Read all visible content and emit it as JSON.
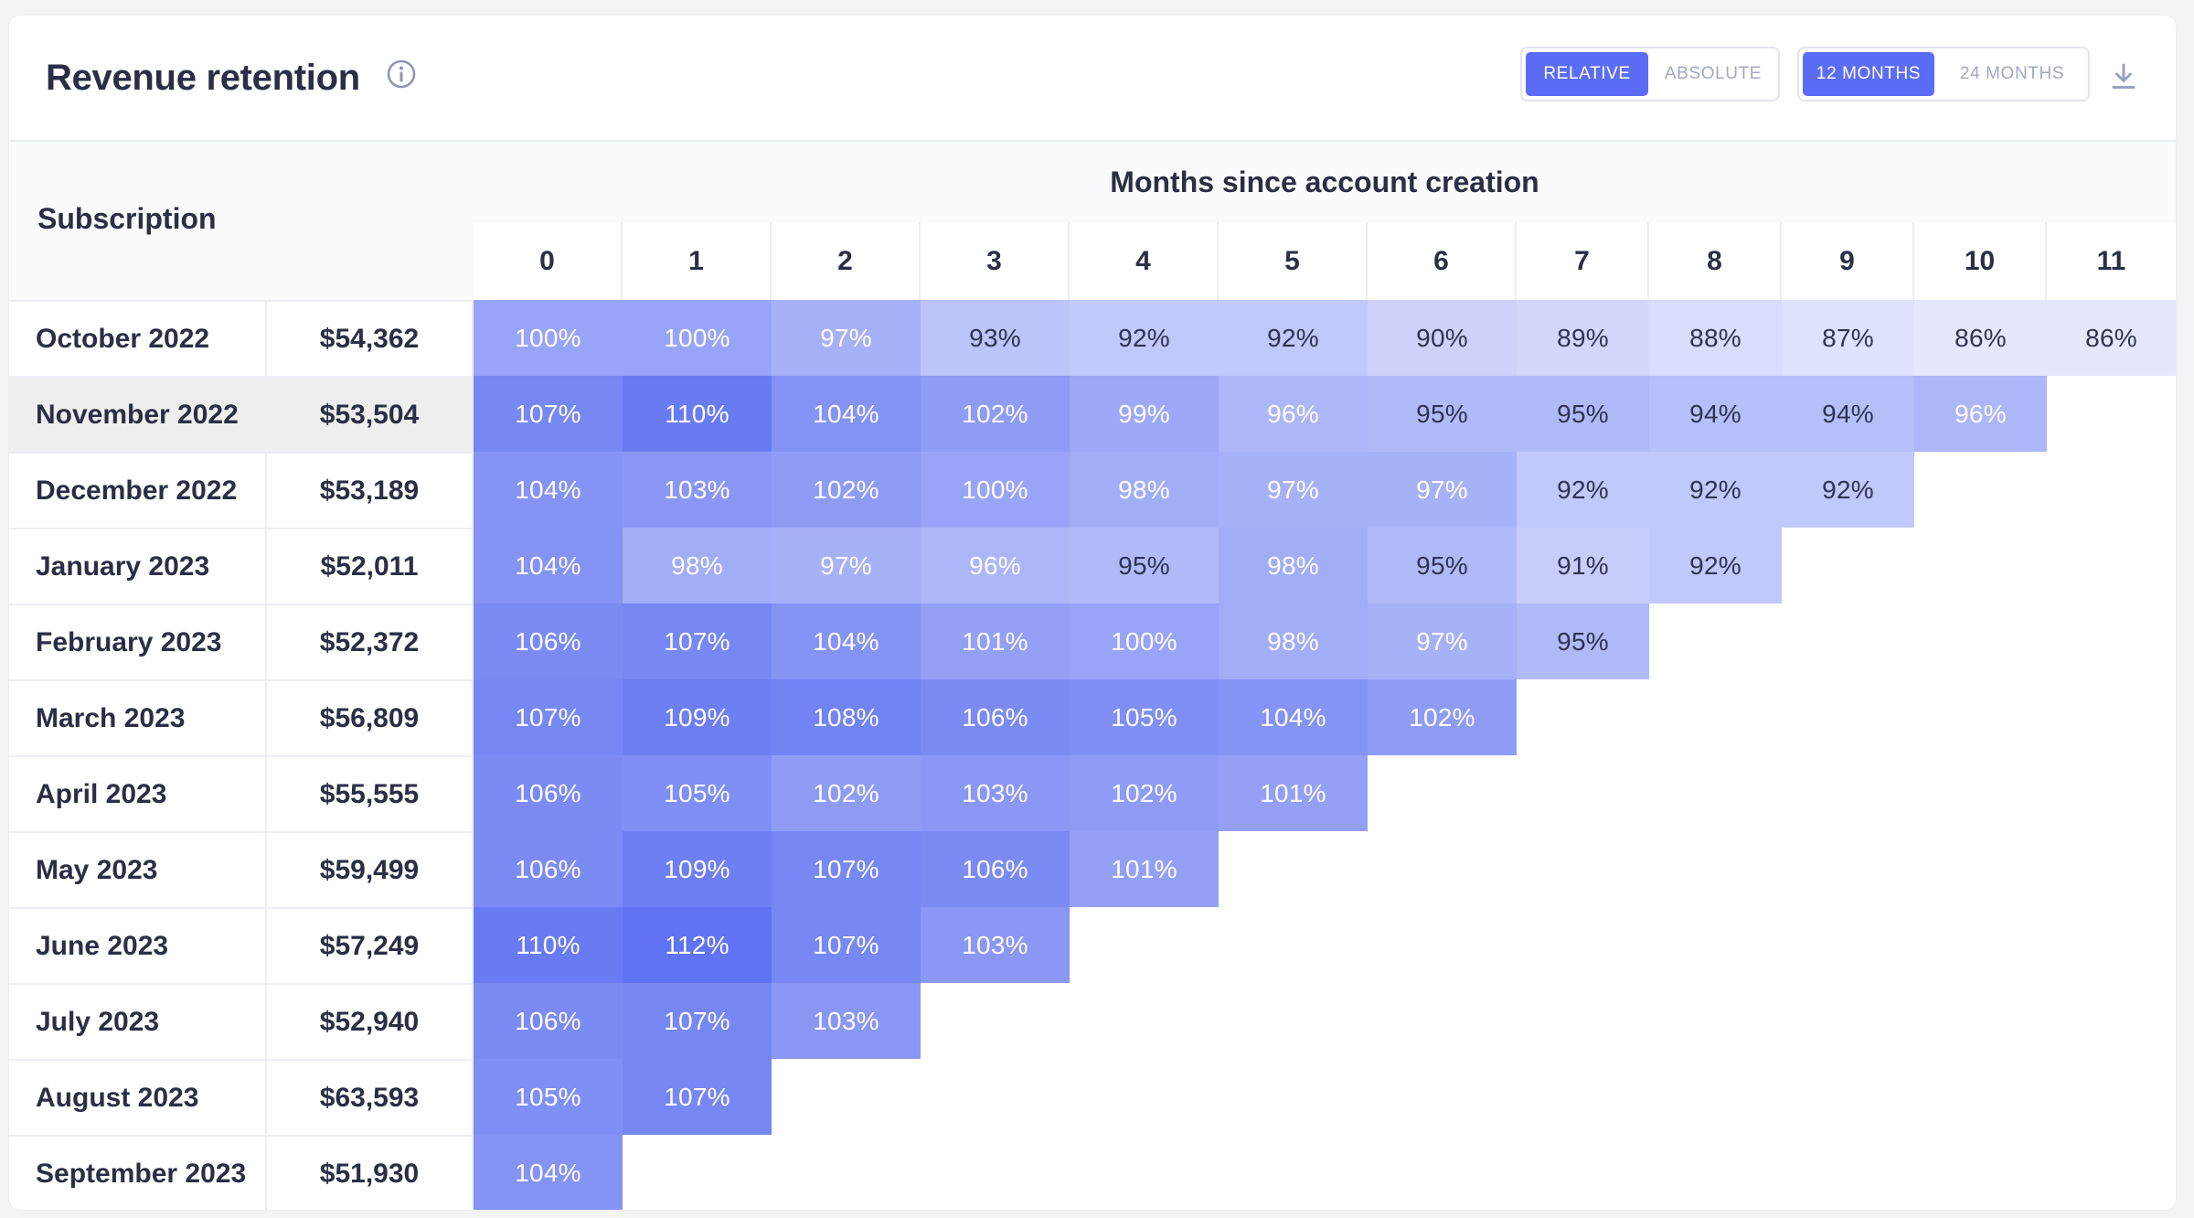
{
  "header": {
    "title": "Revenue retention",
    "mode_options": [
      {
        "label": "RELATIVE",
        "active": true
      },
      {
        "label": "ABSOLUTE",
        "active": false
      }
    ],
    "range_options": [
      {
        "label": "12 MONTHS",
        "active": true
      },
      {
        "label": "24 MONTHS",
        "active": false
      }
    ],
    "info_icon": "info-circle-icon",
    "download_icon": "download-icon"
  },
  "table": {
    "row_header": "Subscription",
    "columns_title": "Months since account creation",
    "columns": [
      "0",
      "1",
      "2",
      "3",
      "4",
      "5",
      "6",
      "7",
      "8",
      "9",
      "10",
      "11"
    ],
    "highlight_row": 1,
    "rows": [
      {
        "cohort": "October 2022",
        "revenue": "$54,362",
        "values": [
          "100%",
          "100%",
          "97%",
          "93%",
          "92%",
          "92%",
          "90%",
          "89%",
          "88%",
          "87%",
          "86%",
          "86%"
        ]
      },
      {
        "cohort": "November 2022",
        "revenue": "$53,504",
        "values": [
          "107%",
          "110%",
          "104%",
          "102%",
          "99%",
          "96%",
          "95%",
          "95%",
          "94%",
          "94%",
          "96%"
        ]
      },
      {
        "cohort": "December 2022",
        "revenue": "$53,189",
        "values": [
          "104%",
          "103%",
          "102%",
          "100%",
          "98%",
          "97%",
          "97%",
          "92%",
          "92%",
          "92%"
        ]
      },
      {
        "cohort": "January 2023",
        "revenue": "$52,011",
        "values": [
          "104%",
          "98%",
          "97%",
          "96%",
          "95%",
          "98%",
          "95%",
          "91%",
          "92%"
        ]
      },
      {
        "cohort": "February 2023",
        "revenue": "$52,372",
        "values": [
          "106%",
          "107%",
          "104%",
          "101%",
          "100%",
          "98%",
          "97%",
          "95%"
        ]
      },
      {
        "cohort": "March 2023",
        "revenue": "$56,809",
        "values": [
          "107%",
          "109%",
          "108%",
          "106%",
          "105%",
          "104%",
          "102%"
        ]
      },
      {
        "cohort": "April 2023",
        "revenue": "$55,555",
        "values": [
          "106%",
          "105%",
          "102%",
          "103%",
          "102%",
          "101%"
        ]
      },
      {
        "cohort": "May 2023",
        "revenue": "$59,499",
        "values": [
          "106%",
          "109%",
          "107%",
          "106%",
          "101%"
        ]
      },
      {
        "cohort": "June 2023",
        "revenue": "$57,249",
        "values": [
          "110%",
          "112%",
          "107%",
          "103%"
        ]
      },
      {
        "cohort": "July 2023",
        "revenue": "$52,940",
        "values": [
          "106%",
          "107%",
          "103%"
        ]
      },
      {
        "cohort": "August 2023",
        "revenue": "$63,593",
        "values": [
          "105%",
          "107%"
        ]
      },
      {
        "cohort": "September 2023",
        "revenue": "$51,930",
        "values": [
          "104%"
        ]
      }
    ]
  },
  "colors": {
    "accent": "#5b6df6",
    "heat_low": "#eef0fd",
    "heat_high": "#5c6ff2"
  }
}
